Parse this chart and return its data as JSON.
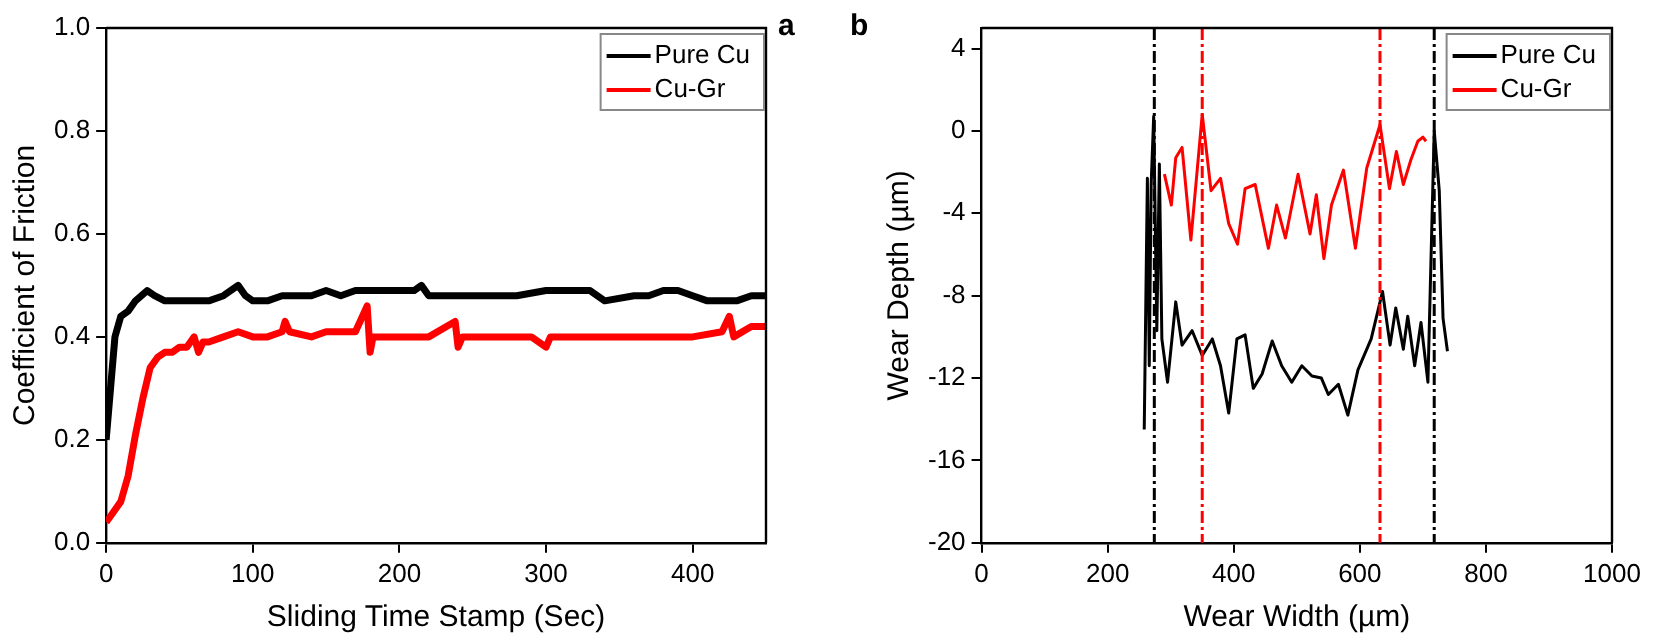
{
  "chart_data": [
    {
      "type": "line",
      "xlabel": "Sliding Time Stamp (Sec)",
      "ylabel": "Coefficient of Friction",
      "annotations": [
        "a"
      ],
      "legend": "top right",
      "grid": false,
      "marker": "none",
      "line_style": "solid",
      "xlim": [
        0,
        450
      ],
      "xticks": [
        0,
        100,
        200,
        300,
        400
      ],
      "ylim": [
        0,
        1.0
      ],
      "yticks": [
        {
          "value": 0,
          "label": "0.0"
        },
        {
          "value": 0.2,
          "label": "0.2"
        },
        {
          "value": 0.4,
          "label": "0.4"
        },
        {
          "value": 0.6,
          "label": "0.6"
        },
        {
          "value": 0.8,
          "label": "0.8"
        },
        {
          "value": 1.0,
          "label": "1.0"
        }
      ],
      "series": [
        {
          "name": "Pure Cu",
          "color": "#000000",
          "x": [
            0,
            3,
            6,
            10,
            15,
            20,
            28,
            33,
            40,
            50,
            60,
            70,
            80,
            90,
            95,
            100,
            110,
            120,
            130,
            140,
            150,
            160,
            170,
            180,
            190,
            200,
            210,
            215,
            220,
            240,
            260,
            280,
            300,
            320,
            330,
            340,
            360,
            370,
            380,
            390,
            400,
            410,
            420,
            430,
            440,
            450
          ],
          "values": [
            0.2,
            0.3,
            0.4,
            0.44,
            0.45,
            0.47,
            0.49,
            0.48,
            0.47,
            0.47,
            0.47,
            0.47,
            0.48,
            0.5,
            0.48,
            0.47,
            0.47,
            0.48,
            0.48,
            0.48,
            0.49,
            0.48,
            0.49,
            0.49,
            0.49,
            0.49,
            0.49,
            0.5,
            0.48,
            0.48,
            0.48,
            0.48,
            0.49,
            0.49,
            0.49,
            0.47,
            0.48,
            0.48,
            0.49,
            0.49,
            0.48,
            0.47,
            0.47,
            0.47,
            0.48,
            0.48
          ]
        },
        {
          "name": "Cu-Gr",
          "color": "#ff0000",
          "x": [
            0,
            5,
            10,
            15,
            20,
            25,
            30,
            35,
            40,
            45,
            50,
            55,
            60,
            63,
            66,
            70,
            80,
            90,
            100,
            110,
            120,
            122,
            125,
            140,
            150,
            160,
            170,
            178,
            180,
            182,
            185,
            200,
            220,
            238,
            240,
            243,
            260,
            280,
            290,
            300,
            303,
            320,
            340,
            360,
            380,
            400,
            420,
            425,
            428,
            440,
            450
          ],
          "values": [
            0.04,
            0.06,
            0.08,
            0.13,
            0.21,
            0.28,
            0.34,
            0.36,
            0.37,
            0.37,
            0.38,
            0.38,
            0.4,
            0.37,
            0.39,
            0.39,
            0.4,
            0.41,
            0.4,
            0.4,
            0.41,
            0.43,
            0.41,
            0.4,
            0.41,
            0.41,
            0.41,
            0.46,
            0.37,
            0.4,
            0.4,
            0.4,
            0.4,
            0.43,
            0.38,
            0.4,
            0.4,
            0.4,
            0.4,
            0.38,
            0.4,
            0.4,
            0.4,
            0.4,
            0.4,
            0.4,
            0.41,
            0.44,
            0.4,
            0.42,
            0.42
          ]
        }
      ]
    },
    {
      "type": "line",
      "xlabel": "Wear Width (µm)",
      "ylabel": "Wear Depth (µm)",
      "annotations": [
        "b"
      ],
      "legend": "top right",
      "grid": false,
      "marker": "none",
      "line_style": "solid",
      "xlim": [
        0,
        1000
      ],
      "xticks": [
        0,
        200,
        400,
        600,
        800,
        1000
      ],
      "ylim": [
        -20,
        5
      ],
      "yticks": [
        4,
        0,
        -4,
        -8,
        -12,
        -16,
        -20
      ],
      "ref_lines": [
        {
          "axis": "x",
          "value": 274,
          "color": "#000000",
          "line_style": "dashed"
        },
        {
          "axis": "x",
          "value": 350,
          "color": "#ff0000",
          "line_style": "dashed"
        },
        {
          "axis": "x",
          "value": 632,
          "color": "#ff0000",
          "line_style": "dashed"
        },
        {
          "axis": "x",
          "value": 718,
          "color": "#000000",
          "line_style": "dashed"
        }
      ],
      "series": [
        {
          "name": "Pure Cu",
          "color": "#000000",
          "x": [
            258,
            263,
            266,
            269,
            273,
            278,
            282,
            286,
            295,
            308,
            318,
            334,
            350,
            366,
            379,
            392,
            405,
            418,
            431,
            445,
            461,
            476,
            492,
            508,
            524,
            539,
            550,
            566,
            581,
            597,
            618,
            636,
            648,
            657,
            669,
            676,
            687,
            697,
            708,
            718,
            726,
            732,
            739
          ],
          "values": [
            -14.5,
            -2.3,
            -11.4,
            -2.6,
            0.7,
            -9.7,
            -1.6,
            -10.1,
            -12.2,
            -8.3,
            -10.4,
            -9.7,
            -10.9,
            -10.1,
            -11.4,
            -13.7,
            -10.1,
            -9.9,
            -12.5,
            -11.8,
            -10.2,
            -11.4,
            -12.2,
            -11.4,
            -11.9,
            -12.0,
            -12.8,
            -12.3,
            -13.8,
            -11.6,
            -10.1,
            -7.8,
            -10.4,
            -8.6,
            -10.6,
            -9.0,
            -11.4,
            -9.3,
            -12.2,
            0.0,
            -2.9,
            -9.1,
            -10.7
          ]
        },
        {
          "name": "Cu-Gr",
          "color": "#ff0000",
          "x": [
            290,
            301,
            308,
            318,
            332,
            350,
            364,
            379,
            392,
            406,
            418,
            434,
            455,
            468,
            482,
            502,
            521,
            531,
            543,
            555,
            574,
            593,
            611,
            632,
            647,
            658,
            669,
            681,
            692,
            700,
            705
          ],
          "values": [
            -2.1,
            -3.6,
            -1.3,
            -0.8,
            -5.3,
            0.8,
            -2.9,
            -2.3,
            -4.5,
            -5.5,
            -2.8,
            -2.6,
            -5.7,
            -3.6,
            -5.2,
            -2.1,
            -5.0,
            -3.1,
            -6.2,
            -3.6,
            -1.9,
            -5.7,
            -1.8,
            0.3,
            -2.8,
            -1.0,
            -2.6,
            -1.4,
            -0.5,
            -0.3,
            -0.5
          ]
        }
      ]
    }
  ]
}
